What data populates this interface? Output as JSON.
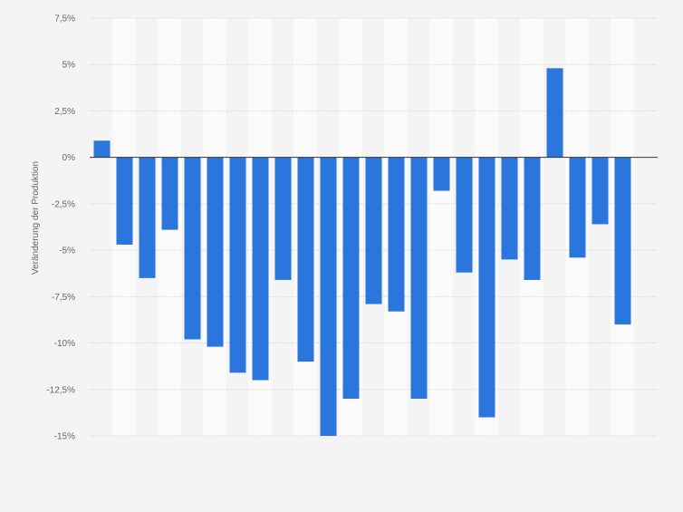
{
  "chart_data": {
    "type": "bar",
    "title": "",
    "xlabel": "",
    "ylabel": "Veränderung der Produktion",
    "ylim": [
      -15,
      7.5
    ],
    "yticks": [
      {
        "value": 7.5,
        "label": "7,5%"
      },
      {
        "value": 5,
        "label": "5%"
      },
      {
        "value": 2.5,
        "label": "2,5%"
      },
      {
        "value": 0,
        "label": "0%"
      },
      {
        "value": -2.5,
        "label": "-2,5%"
      },
      {
        "value": -5,
        "label": "-5%"
      },
      {
        "value": -7.5,
        "label": "-7,5%"
      },
      {
        "value": -10,
        "label": "-10%"
      },
      {
        "value": -12.5,
        "label": "-12,5%"
      },
      {
        "value": -15,
        "label": "-15%"
      }
    ],
    "grid": true,
    "bar_color": "#2a76dd",
    "values": [
      0.9,
      -4.7,
      -6.5,
      -3.9,
      -9.8,
      -10.2,
      -11.6,
      -12.0,
      -6.6,
      -11.0,
      -15.0,
      -13.0,
      -7.9,
      -8.3,
      -13.0,
      -1.8,
      -6.2,
      -14.0,
      -5.5,
      -6.6,
      4.8,
      -5.4,
      -3.6,
      -9.0
    ]
  }
}
